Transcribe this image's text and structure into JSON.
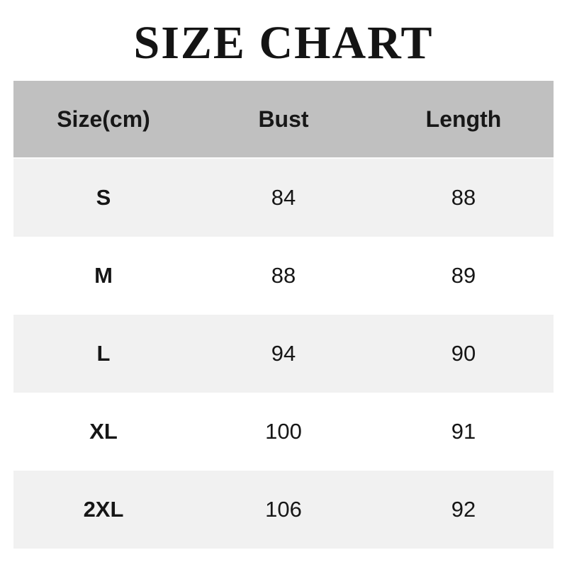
{
  "title": "SIZE CHART",
  "table": {
    "columns": [
      "Size(cm)",
      "Bust",
      "Length"
    ],
    "rows": [
      {
        "size": "S",
        "bust": "84",
        "length": "88"
      },
      {
        "size": "M",
        "bust": "88",
        "length": "89"
      },
      {
        "size": "L",
        "bust": "94",
        "length": "90"
      },
      {
        "size": "XL",
        "bust": "100",
        "length": "91"
      },
      {
        "size": "2XL",
        "bust": "106",
        "length": "92"
      }
    ]
  },
  "colors": {
    "header_bg": "#c0c0c0",
    "row_alt_bg": "#f1f1f1",
    "row_bg": "#ffffff",
    "text": "#161616",
    "page_bg": "#ffffff"
  },
  "chart_data": {
    "type": "table",
    "title": "SIZE CHART",
    "columns": [
      "Size(cm)",
      "Bust",
      "Length"
    ],
    "rows": [
      [
        "S",
        84,
        88
      ],
      [
        "M",
        88,
        89
      ],
      [
        "L",
        94,
        90
      ],
      [
        "XL",
        100,
        91
      ],
      [
        "2XL",
        106,
        92
      ]
    ],
    "layout_hints": {
      "header_background": "#c0c0c0",
      "alternating_row_background": "#f1f1f1",
      "text_alignment": "center"
    }
  }
}
